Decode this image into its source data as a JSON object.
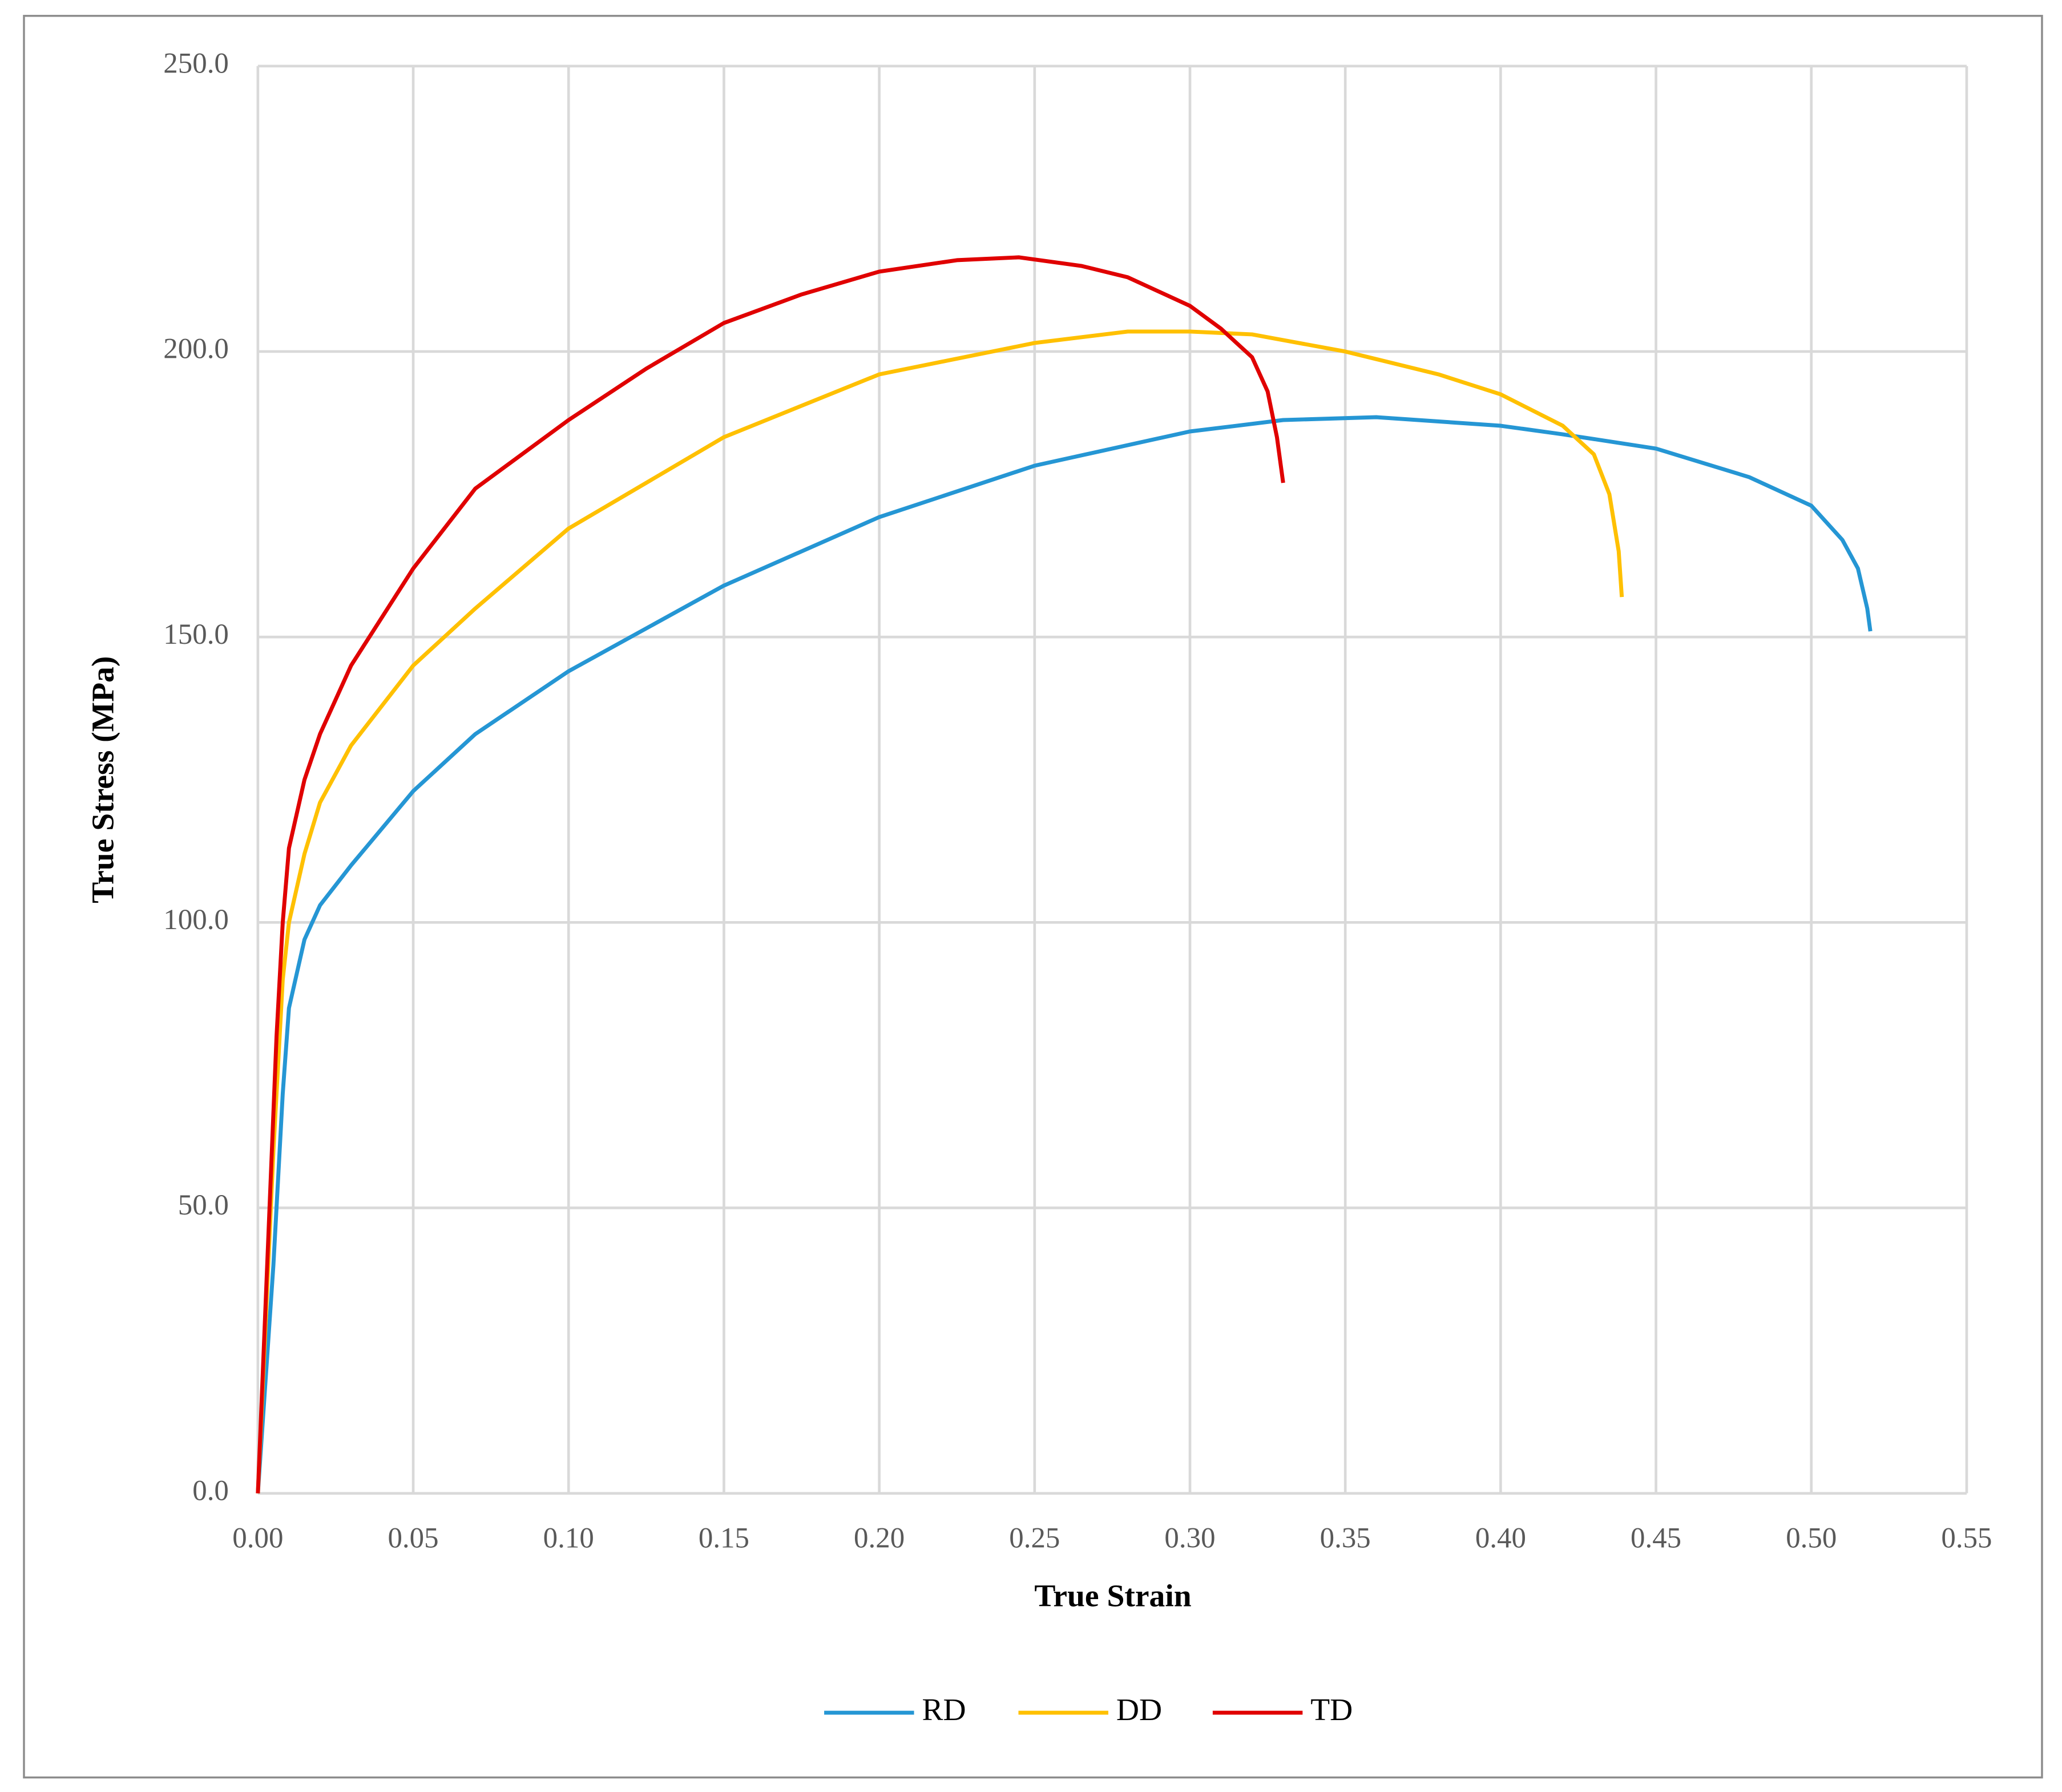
{
  "chart_data": {
    "type": "line",
    "x_label": "True Strain",
    "y_label": "True Stress (MPa)",
    "xlim": [
      0,
      0.55
    ],
    "ylim": [
      0,
      250
    ],
    "xticks": [
      {
        "value": 0,
        "label": "0.00"
      },
      {
        "value": 0.05,
        "label": "0.05"
      },
      {
        "value": 0.1,
        "label": "0.10"
      },
      {
        "value": 0.15,
        "label": "0.15"
      },
      {
        "value": 0.2,
        "label": "0.20"
      },
      {
        "value": 0.25,
        "label": "0.25"
      },
      {
        "value": 0.3,
        "label": "0.30"
      },
      {
        "value": 0.35,
        "label": "0.35"
      },
      {
        "value": 0.4,
        "label": "0.40"
      },
      {
        "value": 0.45,
        "label": "0.45"
      },
      {
        "value": 0.5,
        "label": "0.50"
      },
      {
        "value": 0.55,
        "label": "0.55"
      }
    ],
    "yticks": [
      {
        "value": 0,
        "label": "0.0"
      },
      {
        "value": 50,
        "label": "50.0"
      },
      {
        "value": 100,
        "label": "100.0"
      },
      {
        "value": 150,
        "label": "150.0"
      },
      {
        "value": 200,
        "label": "200.0"
      },
      {
        "value": 250,
        "label": "250.0"
      }
    ],
    "grid": true,
    "legend": "bottom",
    "series": [
      {
        "name": "RD",
        "color": "#2596d4",
        "x": [
          0,
          0.005,
          0.008,
          0.01,
          0.015,
          0.02,
          0.03,
          0.05,
          0.07,
          0.1,
          0.15,
          0.2,
          0.25,
          0.3,
          0.33,
          0.36,
          0.4,
          0.42,
          0.45,
          0.48,
          0.5,
          0.51,
          0.515,
          0.518,
          0.519
        ],
        "values": [
          0,
          40,
          70,
          85,
          97,
          103,
          110,
          123,
          133,
          144,
          159,
          171,
          180,
          186,
          188,
          188.5,
          187,
          185.5,
          183,
          178,
          173,
          167,
          162,
          155,
          151
        ]
      },
      {
        "name": "DD",
        "color": "#ffc000",
        "x": [
          0,
          0.005,
          0.008,
          0.01,
          0.015,
          0.02,
          0.03,
          0.05,
          0.07,
          0.1,
          0.15,
          0.2,
          0.25,
          0.28,
          0.3,
          0.32,
          0.35,
          0.38,
          0.4,
          0.42,
          0.43,
          0.435,
          0.438,
          0.439
        ],
        "values": [
          0,
          60,
          90,
          100,
          112,
          121,
          131,
          145,
          155,
          169,
          185,
          196,
          201.5,
          203.5,
          203.5,
          203,
          200,
          196,
          192.5,
          187,
          182,
          175,
          165,
          157
        ]
      },
      {
        "name": "TD",
        "color": "#e00000",
        "x": [
          0,
          0.003,
          0.006,
          0.008,
          0.01,
          0.015,
          0.02,
          0.03,
          0.05,
          0.07,
          0.1,
          0.125,
          0.15,
          0.175,
          0.2,
          0.225,
          0.245,
          0.265,
          0.28,
          0.3,
          0.31,
          0.32,
          0.325,
          0.328,
          0.33
        ],
        "values": [
          0,
          40,
          80,
          100,
          113,
          125,
          133,
          145,
          162,
          176,
          188,
          197,
          205,
          210,
          214,
          216,
          216.5,
          215,
          213,
          208,
          204,
          199,
          193,
          185,
          177
        ]
      }
    ]
  }
}
